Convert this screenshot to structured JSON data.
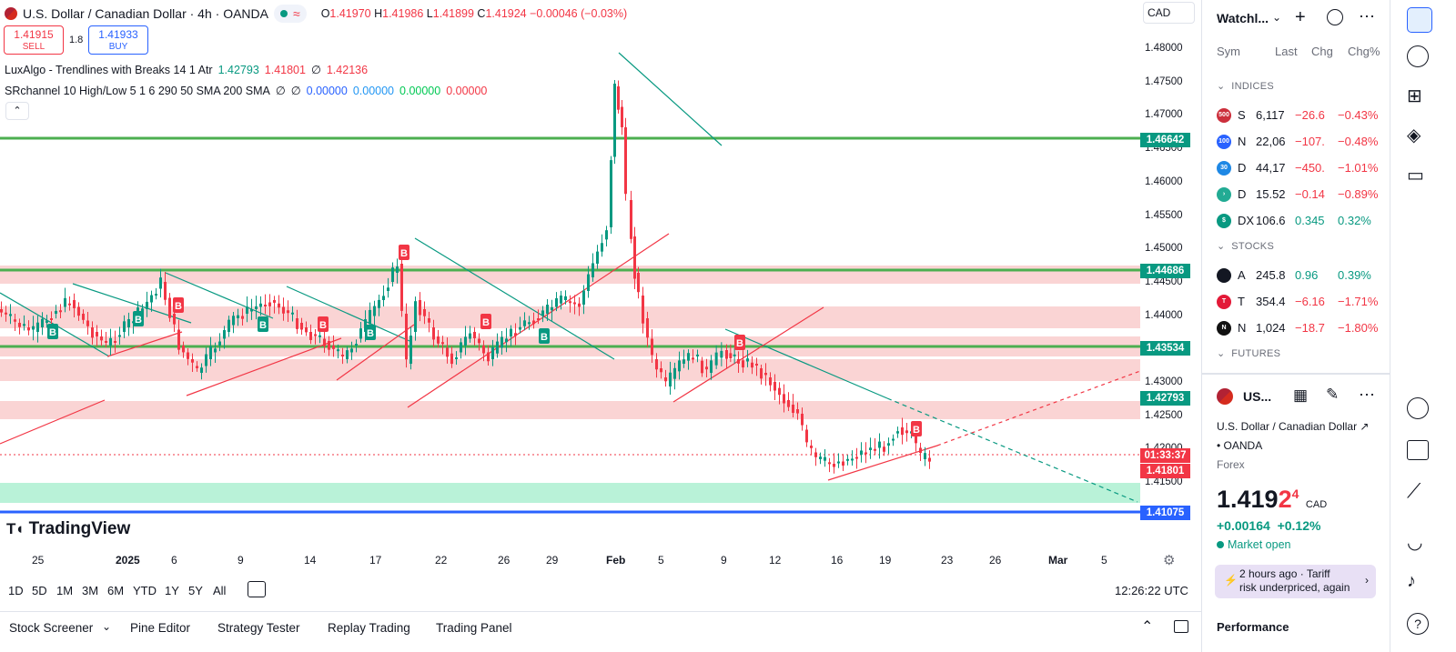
{
  "header": {
    "symbol_title": "U.S. Dollar / Canadian Dollar · 4h · OANDA",
    "ohlc": {
      "o_label": "O",
      "o": "1.41970",
      "h_label": "H",
      "h": "1.41986",
      "l_label": "L",
      "l": "1.41899",
      "c_label": "C",
      "c": "1.41924",
      "change": "−0.00046 (−0.03%)"
    },
    "currency_box": "CAD"
  },
  "trade": {
    "sell_price": "1.41915",
    "sell_label": "SELL",
    "spread": "1.8",
    "buy_price": "1.41933",
    "buy_label": "BUY"
  },
  "indicators": [
    {
      "name": "LuxAlgo - Trendlines with Breaks 14 1 Atr",
      "v1": "1.42793",
      "v2": "1.41801",
      "sym": "∅",
      "v3": "1.42136"
    },
    {
      "name": "SRchannel 10 High/Low 5 1 6 290 50 SMA 200 SMA",
      "sym1": "∅",
      "sym2": "∅",
      "v1": "0.00000",
      "v2": "0.00000",
      "v3": "0.00000",
      "v4": "0.00000"
    }
  ],
  "price_axis": {
    "ticks": [
      "1.48000",
      "1.47500",
      "1.47000",
      "1.46500",
      "1.46000",
      "1.45500",
      "1.45000",
      "1.44500",
      "1.44000",
      "1.43500",
      "1.43000",
      "1.42500",
      "1.42000",
      "1.41500"
    ],
    "tags": [
      {
        "value": "1.46642",
        "color": "#089981"
      },
      {
        "value": "1.44686",
        "color": "#089981"
      },
      {
        "value": "1.43534",
        "color": "#089981"
      },
      {
        "value": "1.42793",
        "color": "#089981"
      },
      {
        "value": "01:33:37",
        "color": "#f23645"
      },
      {
        "value": "1.41801",
        "color": "#f23645"
      },
      {
        "value": "1.41075",
        "color": "#2962ff"
      }
    ]
  },
  "time_axis": [
    "25",
    "2025",
    "6",
    "9",
    "14",
    "17",
    "22",
    "26",
    "29",
    "Feb",
    "5",
    "9",
    "12",
    "16",
    "19",
    "23",
    "26",
    "Mar",
    "5"
  ],
  "brand": "TradingView",
  "range_bar": {
    "ranges": [
      "1D",
      "5D",
      "1M",
      "3M",
      "6M",
      "YTD",
      "1Y",
      "5Y",
      "All"
    ],
    "clock": "12:26:22 UTC"
  },
  "bottom_tabs": [
    "Stock Screener",
    "Pine Editor",
    "Strategy Tester",
    "Replay Trading",
    "Trading Panel"
  ],
  "watchlist": {
    "title": "Watchl...",
    "columns": [
      "Sym",
      "Last",
      "Chg",
      "Chg%"
    ],
    "sections": [
      {
        "label": "INDICES",
        "rows": [
          {
            "logo": "500",
            "logo_color": "#cc2f3c",
            "sym": "S",
            "last": "6,117",
            "chg": "−26.6",
            "chgp": "−0.43%",
            "dir": "neg"
          },
          {
            "logo": "100",
            "logo_color": "#2962ff",
            "sym": "N",
            "last": "22,06",
            "chg": "−107.",
            "chgp": "−0.48%",
            "dir": "neg"
          },
          {
            "logo": "30",
            "logo_color": "#1e88e5",
            "sym": "D",
            "last": "44,17",
            "chg": "−450.",
            "chgp": "−1.01%",
            "dir": "neg"
          },
          {
            "logo": "›",
            "logo_color": "#22ab94",
            "sym": "D",
            "last": "15.52",
            "chg": "−0.14",
            "chgp": "−0.89%",
            "dir": "neg"
          },
          {
            "logo": "$",
            "logo_color": "#089981",
            "sym": "DX",
            "last": "106.6",
            "chg": "0.345",
            "chgp": "0.32%",
            "dir": "pos"
          }
        ]
      },
      {
        "label": "STOCKS",
        "rows": [
          {
            "logo": "",
            "logo_color": "#131722",
            "sym": "A",
            "last": "245.8",
            "chg": "0.96",
            "chgp": "0.39%",
            "dir": "pos"
          },
          {
            "logo": "T",
            "logo_color": "#e31937",
            "sym": "T",
            "last": "354.4",
            "chg": "−6.16",
            "chgp": "−1.71%",
            "dir": "neg"
          },
          {
            "logo": "N",
            "logo_color": "#111111",
            "sym": "N",
            "last": "1,024",
            "chg": "−18.7",
            "chgp": "−1.80%",
            "dir": "neg"
          }
        ]
      },
      {
        "label": "FUTURES",
        "rows": []
      }
    ]
  },
  "details": {
    "sym_short": "US...",
    "full_name": "U.S. Dollar / Canadian Dollar",
    "exchange": "OANDA",
    "category": "Forex",
    "price_main": "1.419",
    "price_big": "2",
    "price_sup": "4",
    "price_ccy": "CAD",
    "change": "+0.00164",
    "change_pct": "+0.12%",
    "market_status": "Market open",
    "news_time": "2 hours ago",
    "news_source": "Tariff",
    "news_headline": "risk underpriced, again",
    "performance": "Performance"
  },
  "colors": {
    "up": "#089981",
    "down": "#f23645",
    "accent": "#2962ff",
    "sr_zone": "#f7c5c5",
    "support_zone": "#b9f2d8",
    "level_line": "#4caf50"
  }
}
